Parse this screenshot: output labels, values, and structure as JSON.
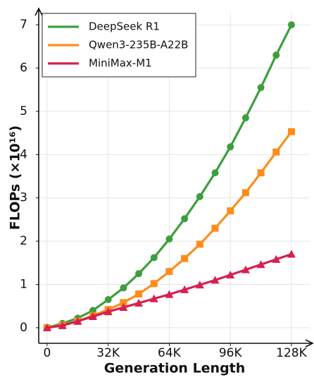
{
  "chart_data": {
    "type": "line",
    "x_label": "Generation Length",
    "y_label": "FLOPs (×10¹⁶)",
    "x": [
      0,
      8000,
      16000,
      24000,
      32000,
      40000,
      48000,
      56000,
      64000,
      72000,
      80000,
      88000,
      96000,
      104000,
      112000,
      120000,
      128000
    ],
    "series": [
      {
        "name": "DeepSeek R1",
        "color": "#3c9f3c",
        "marker": "circle",
        "values": [
          0,
          0.1,
          0.22,
          0.4,
          0.65,
          0.92,
          1.25,
          1.62,
          2.05,
          2.52,
          3.03,
          3.58,
          4.18,
          4.85,
          5.55,
          6.3,
          7.0
        ]
      },
      {
        "name": "Qwen3-235B-A22B",
        "color": "#ff8c1a",
        "marker": "square",
        "values": [
          0,
          0.06,
          0.15,
          0.28,
          0.42,
          0.58,
          0.78,
          1.02,
          1.3,
          1.6,
          1.93,
          2.3,
          2.7,
          3.12,
          3.58,
          4.06,
          4.53
        ]
      },
      {
        "name": "MiniMax-M1",
        "color": "#d6204f",
        "marker": "triangle",
        "values": [
          0,
          0.05,
          0.15,
          0.26,
          0.37,
          0.47,
          0.57,
          0.67,
          0.77,
          0.88,
          0.99,
          1.1,
          1.22,
          1.34,
          1.46,
          1.58,
          1.7
        ]
      }
    ],
    "xlim": [
      -4400,
      137600
    ],
    "ylim": [
      -0.36,
      7.28
    ],
    "xticks": [
      0,
      {
        "value": 32000,
        "label": "32K"
      },
      {
        "value": 64000,
        "label": "64K"
      },
      {
        "value": 96000,
        "label": "96K"
      },
      {
        "value": 128000,
        "label": "128K"
      }
    ],
    "yticks": [
      0,
      1,
      2,
      3,
      4,
      5,
      6,
      7
    ],
    "grid": true,
    "legend": "upper-left"
  }
}
